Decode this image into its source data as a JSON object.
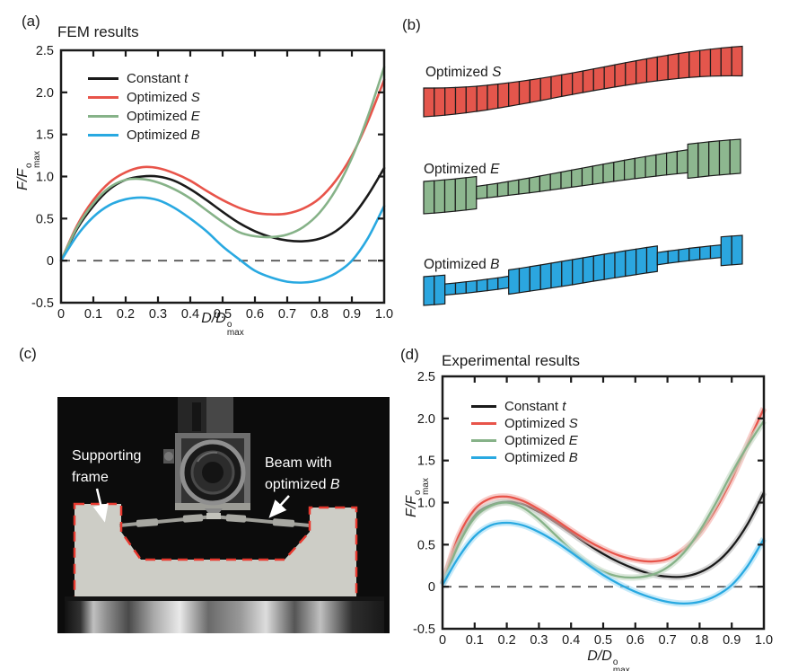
{
  "panels": {
    "a": {
      "letter": "(a)",
      "title": "FEM results"
    },
    "b": {
      "letter": "(b)"
    },
    "c": {
      "letter": "(c)"
    },
    "d": {
      "letter": "(d)",
      "title": "Experimental results"
    }
  },
  "axis_labels": {
    "x_pre": "D/D",
    "y_pre": "F/F",
    "sup": "o",
    "sub": "max"
  },
  "chart_data": [
    {
      "id": "fem",
      "type": "line",
      "title": "FEM results",
      "xlabel": "D/D^o_max",
      "ylabel": "F/F^o_max",
      "xlim": [
        0,
        1
      ],
      "ylim": [
        -0.5,
        2.5
      ],
      "grid": false,
      "legend_position": "upper-left",
      "xticks": {
        "values": [
          0,
          0.1,
          0.2,
          0.3,
          0.4,
          0.5,
          0.6,
          0.7,
          0.8,
          0.9,
          1.0
        ],
        "labels": [
          "0",
          "0.1",
          "0.2",
          "0.3",
          "0.4",
          "0.5",
          "0.6",
          "0.7",
          "0.8",
          "0.9",
          "1.0"
        ]
      },
      "yticks": {
        "values": [
          -0.5,
          0,
          0.5,
          1.0,
          1.5,
          2.0,
          2.5
        ],
        "labels": [
          "-0.5",
          "0",
          "0.5",
          "1.0",
          "1.5",
          "2.0",
          "2.5"
        ]
      },
      "zero_line": {
        "y": 0,
        "style": "dashed",
        "color": "#595959"
      },
      "x": [
        0,
        0.05,
        0.1,
        0.15,
        0.2,
        0.25,
        0.3,
        0.35,
        0.4,
        0.45,
        0.5,
        0.55,
        0.6,
        0.65,
        0.7,
        0.75,
        0.8,
        0.85,
        0.9,
        0.95,
        1.0
      ],
      "series": [
        {
          "id": "constant-t",
          "label_prefix": "Constant ",
          "label_italic": "t",
          "color": "#1a1a1a",
          "values": [
            0,
            0.38,
            0.65,
            0.85,
            0.96,
            1.0,
            1.0,
            0.95,
            0.85,
            0.72,
            0.58,
            0.45,
            0.35,
            0.28,
            0.24,
            0.23,
            0.26,
            0.35,
            0.52,
            0.78,
            1.1
          ]
        },
        {
          "id": "optimized-s",
          "label_prefix": "Optimized ",
          "label_italic": "S",
          "color": "#e8544a",
          "values": [
            0,
            0.42,
            0.72,
            0.93,
            1.05,
            1.11,
            1.1,
            1.04,
            0.95,
            0.83,
            0.72,
            0.63,
            0.57,
            0.55,
            0.56,
            0.62,
            0.74,
            0.95,
            1.25,
            1.66,
            2.15
          ]
        },
        {
          "id": "optimized-e",
          "label_prefix": "Optimized ",
          "label_italic": "E",
          "color": "#86b288",
          "values": [
            0,
            0.4,
            0.68,
            0.87,
            0.96,
            0.97,
            0.93,
            0.85,
            0.74,
            0.6,
            0.46,
            0.34,
            0.29,
            0.28,
            0.31,
            0.4,
            0.57,
            0.84,
            1.22,
            1.72,
            2.3
          ]
        },
        {
          "id": "optimized-b",
          "label_prefix": "Optimized ",
          "label_italic": "B",
          "color": "#29a9e1",
          "values": [
            0,
            0.3,
            0.52,
            0.66,
            0.73,
            0.75,
            0.72,
            0.63,
            0.5,
            0.35,
            0.17,
            0.02,
            -0.12,
            -0.2,
            -0.25,
            -0.26,
            -0.23,
            -0.15,
            0.0,
            0.27,
            0.65
          ]
        }
      ]
    },
    {
      "id": "experimental",
      "type": "line",
      "title": "Experimental results",
      "xlabel": "D/D^o_max",
      "ylabel": "F/F^o_max",
      "xlim": [
        0,
        1
      ],
      "ylim": [
        -0.5,
        2.5
      ],
      "grid": false,
      "legend_position": "upper-left",
      "xticks": {
        "values": [
          0,
          0.1,
          0.2,
          0.3,
          0.4,
          0.5,
          0.6,
          0.7,
          0.8,
          0.9,
          1.0
        ],
        "labels": [
          "0",
          "0.1",
          "0.2",
          "0.3",
          "0.4",
          "0.5",
          "0.6",
          "0.7",
          "0.8",
          "0.9",
          "1.0"
        ]
      },
      "yticks": {
        "values": [
          -0.5,
          0,
          0.5,
          1.0,
          1.5,
          2.0,
          2.5
        ],
        "labels": [
          "-0.5",
          "0",
          "0.5",
          "1.0",
          "1.5",
          "2.0",
          "2.5"
        ]
      },
      "zero_line": {
        "y": 0,
        "style": "dashed",
        "color": "#595959"
      },
      "x": [
        0,
        0.05,
        0.1,
        0.15,
        0.2,
        0.25,
        0.3,
        0.35,
        0.4,
        0.45,
        0.5,
        0.55,
        0.6,
        0.65,
        0.7,
        0.75,
        0.8,
        0.85,
        0.9,
        0.95,
        1.0
      ],
      "series": [
        {
          "id": "constant-t",
          "label_prefix": "Constant ",
          "label_italic": "t",
          "color": "#1a1a1a",
          "band": "#bfbfbf",
          "values": [
            0.03,
            0.55,
            0.85,
            0.97,
            1.01,
            0.98,
            0.89,
            0.77,
            0.64,
            0.51,
            0.39,
            0.29,
            0.21,
            0.15,
            0.12,
            0.12,
            0.17,
            0.28,
            0.47,
            0.75,
            1.12
          ]
        },
        {
          "id": "optimized-s",
          "label_prefix": "Optimized ",
          "label_italic": "S",
          "color": "#e8544a",
          "band": "#f4b2ad",
          "values": [
            0.03,
            0.6,
            0.92,
            1.05,
            1.07,
            1.02,
            0.92,
            0.8,
            0.67,
            0.55,
            0.45,
            0.37,
            0.32,
            0.3,
            0.33,
            0.44,
            0.63,
            0.92,
            1.28,
            1.7,
            2.12
          ]
        },
        {
          "id": "optimized-e",
          "label_prefix": "Optimized ",
          "label_italic": "E",
          "color": "#86b288",
          "band": "#c9dcc9",
          "values": [
            0.03,
            0.5,
            0.82,
            0.96,
            1.0,
            0.94,
            0.8,
            0.62,
            0.44,
            0.29,
            0.18,
            0.12,
            0.11,
            0.14,
            0.23,
            0.4,
            0.66,
            0.99,
            1.35,
            1.68,
            1.97
          ]
        },
        {
          "id": "optimized-b",
          "label_prefix": "Optimized ",
          "label_italic": "B",
          "color": "#29a9e1",
          "band": "#a9dff6",
          "values": [
            0.02,
            0.35,
            0.6,
            0.73,
            0.76,
            0.73,
            0.65,
            0.54,
            0.41,
            0.27,
            0.14,
            0.03,
            -0.06,
            -0.13,
            -0.18,
            -0.2,
            -0.18,
            -0.11,
            0.02,
            0.25,
            0.57
          ]
        }
      ]
    }
  ],
  "beams": [
    {
      "id": "optimized-s",
      "label_prefix": "Optimized ",
      "label_italic": "S",
      "color": "#e4564c",
      "slices": [
        [
          16,
          15.6
        ],
        [
          15.6,
          15.2
        ],
        [
          15.2,
          14.8
        ],
        [
          14.8,
          14.4
        ],
        [
          14.4,
          14
        ],
        [
          14,
          13.7
        ],
        [
          13.7,
          13.4
        ],
        [
          13.4,
          13.1
        ],
        [
          13.1,
          12.8
        ],
        [
          12.8,
          12.6
        ],
        [
          12.6,
          12.4
        ],
        [
          12.4,
          12.2
        ],
        [
          12.2,
          12.1
        ],
        [
          12.1,
          12
        ],
        [
          12,
          12
        ],
        [
          12,
          12.1
        ],
        [
          12.1,
          12.2
        ],
        [
          12.2,
          12.4
        ],
        [
          12.4,
          12.6
        ],
        [
          12.6,
          12.8
        ],
        [
          12.8,
          13
        ],
        [
          13,
          13.3
        ],
        [
          13.3,
          13.6
        ],
        [
          13.6,
          13.9
        ],
        [
          13.9,
          14.2
        ],
        [
          14.2,
          14.6
        ],
        [
          14.6,
          15
        ],
        [
          15,
          15.5
        ],
        [
          15.5,
          16
        ],
        [
          16,
          16.5
        ]
      ]
    },
    {
      "id": "optimized-e",
      "label_prefix": "Optimized ",
      "label_italic": "E",
      "color": "#8db78f",
      "slices": [
        [
          18,
          18
        ],
        [
          18,
          18
        ],
        [
          18,
          18
        ],
        [
          18,
          18
        ],
        [
          18,
          18
        ],
        [
          7,
          7.2
        ],
        [
          7.2,
          7.4
        ],
        [
          7.4,
          7.7
        ],
        [
          7.7,
          8
        ],
        [
          8,
          8.3
        ],
        [
          8.3,
          8.6
        ],
        [
          8.6,
          8.9
        ],
        [
          8.9,
          9.2
        ],
        [
          9.2,
          9.5
        ],
        [
          9.5,
          9.8
        ],
        [
          9.8,
          10.1
        ],
        [
          10.1,
          10.4
        ],
        [
          10.4,
          10.7
        ],
        [
          10.7,
          11
        ],
        [
          11,
          11.3
        ],
        [
          11.3,
          11.6
        ],
        [
          11.6,
          11.9
        ],
        [
          11.9,
          12.2
        ],
        [
          12.2,
          12.5
        ],
        [
          12.5,
          12.8
        ],
        [
          19,
          19
        ],
        [
          19,
          19
        ],
        [
          19,
          19
        ],
        [
          19,
          19
        ],
        [
          19,
          19
        ]
      ]
    },
    {
      "id": "optimized-b",
      "label_prefix": "Optimized ",
      "label_italic": "B",
      "color": "#2ba6df",
      "slices": [
        [
          16,
          16
        ],
        [
          16,
          16
        ],
        [
          6.2,
          6.2
        ],
        [
          6.2,
          6.3
        ],
        [
          6.3,
          6.3
        ],
        [
          6.3,
          6.4
        ],
        [
          6.4,
          6.4
        ],
        [
          6.4,
          6.5
        ],
        [
          13.5,
          13.5
        ],
        [
          13.5,
          13.6
        ],
        [
          13.6,
          13.7
        ],
        [
          13.7,
          13.8
        ],
        [
          13.8,
          13.9
        ],
        [
          13.9,
          14
        ],
        [
          14,
          14
        ],
        [
          14,
          14
        ],
        [
          14,
          14.1
        ],
        [
          14.1,
          14.1
        ],
        [
          14.1,
          14.2
        ],
        [
          14.2,
          14.2
        ],
        [
          14.2,
          14.2
        ],
        [
          14.2,
          14.2
        ],
        [
          6.8,
          6.8
        ],
        [
          6.8,
          6.8
        ],
        [
          6.8,
          6.9
        ],
        [
          6.9,
          6.9
        ],
        [
          6.9,
          7
        ],
        [
          7,
          7
        ],
        [
          16,
          16
        ],
        [
          16,
          16
        ]
      ]
    }
  ],
  "photo": {
    "frame_label": {
      "line1": "Supporting",
      "line2": "frame"
    },
    "beam_label": {
      "line1": "Beam with",
      "line2_prefix": "optimized ",
      "line2_italic": "B"
    },
    "outline_color": "#e8392f"
  }
}
